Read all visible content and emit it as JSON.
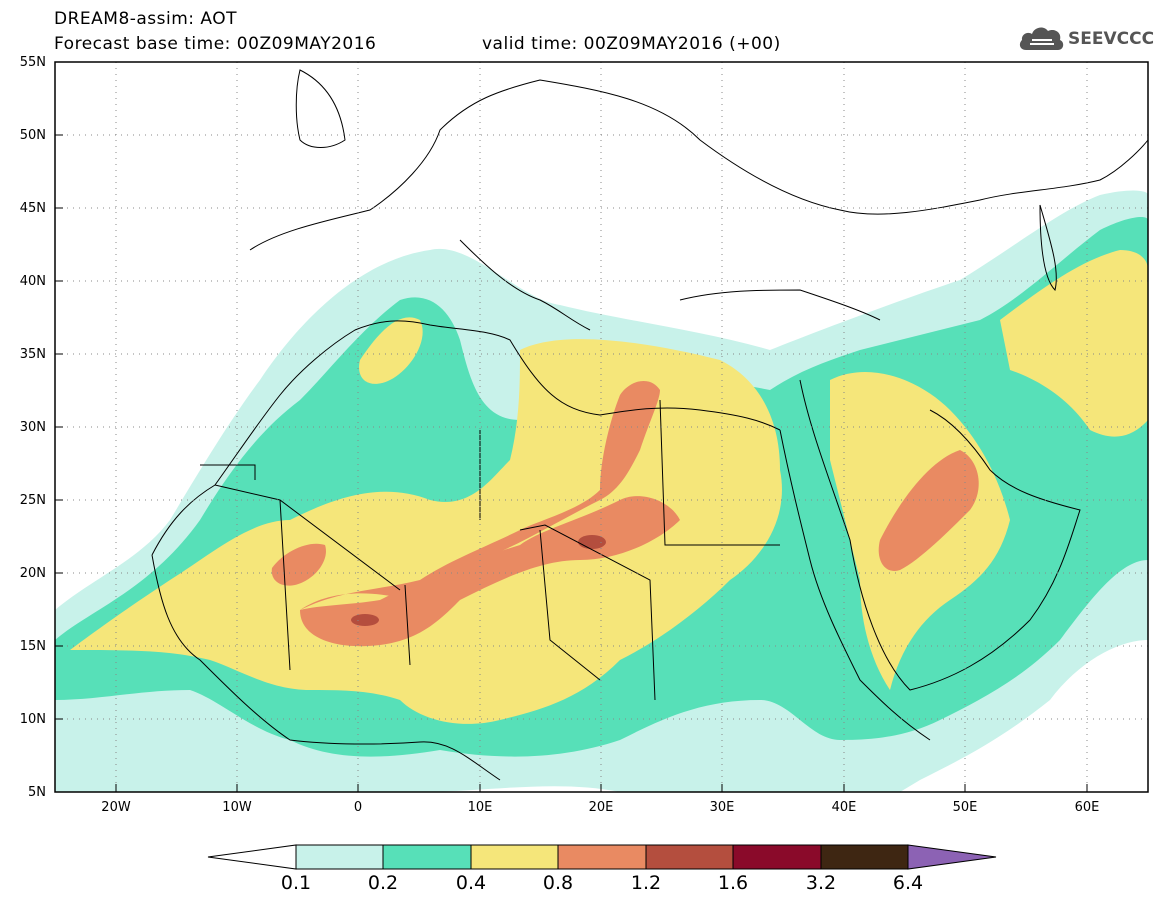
{
  "header": {
    "line1": "DREAM8-assim: AOT",
    "line2": "Forecast base time: 00Z09MAY2016",
    "valid": "valid time: 00Z09MAY2016 (+00)",
    "logo_text": "SEEVCCC",
    "logo_icon": "cloud-icon"
  },
  "axes": {
    "lat_labels": [
      "55N",
      "50N",
      "45N",
      "40N",
      "35N",
      "30N",
      "25N",
      "20N",
      "15N",
      "10N",
      "5N"
    ],
    "lon_labels": [
      "20W",
      "10W",
      "0",
      "10E",
      "20E",
      "30E",
      "40E",
      "50E",
      "60E"
    ]
  },
  "colorbar": {
    "labels": [
      "0.1",
      "0.2",
      "0.4",
      "0.8",
      "1.2",
      "1.6",
      "3.2",
      "6.4"
    ],
    "colors": [
      "#ffffff",
      "#c8f2ea",
      "#57e0b8",
      "#f5e67a",
      "#e98a62",
      "#b44e3e",
      "#8a0a2a",
      "#3e2612",
      "#8c62b4"
    ]
  },
  "colors": {
    "aot_0_1": "#c8f2ea",
    "aot_0_2": "#57e0b8",
    "aot_0_4": "#f5e67a",
    "aot_0_8": "#e98a62",
    "aot_1_2": "#b44e3e",
    "aot_1_6": "#8a0a2a"
  }
}
